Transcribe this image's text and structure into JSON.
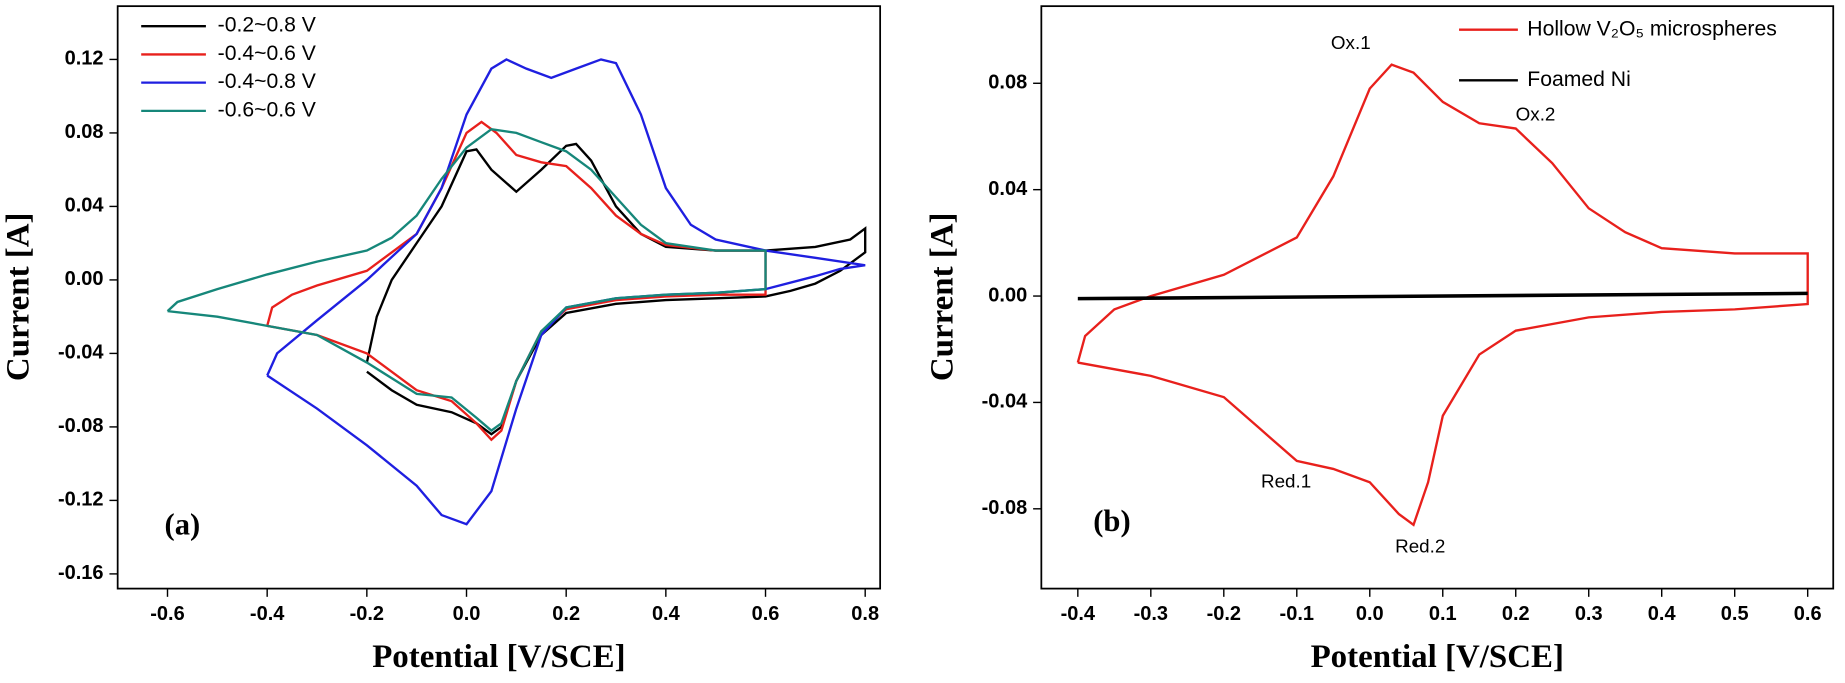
{
  "chart_data": [
    {
      "type": "line",
      "panel_label": "(a)",
      "x_label": "Potential [V/SCE]",
      "y_label": "Current [A]",
      "xlim": [
        -0.7,
        0.83
      ],
      "ylim": [
        -0.168,
        0.149
      ],
      "xticks": [
        -0.6,
        -0.4,
        -0.2,
        {
          "value": 0,
          "label": "0.0"
        },
        0.2,
        0.4,
        0.6,
        0.8
      ],
      "yticks": [
        0.12,
        0.08,
        0.04,
        {
          "value": 0,
          "label": "0.00"
        },
        -0.04,
        -0.08,
        -0.12,
        -0.16
      ],
      "legend": "upper left",
      "series": [
        {
          "name": "-0.2~0.8 V",
          "color": "#000000",
          "x": [
            -0.2,
            -0.18,
            -0.15,
            -0.1,
            -0.05,
            0.0,
            0.02,
            0.05,
            0.1,
            0.15,
            0.2,
            0.22,
            0.25,
            0.3,
            0.35,
            0.4,
            0.5,
            0.6,
            0.7,
            0.77,
            0.8,
            0.8,
            0.75,
            0.7,
            0.65,
            0.6,
            0.5,
            0.4,
            0.3,
            0.2,
            0.15,
            0.1,
            0.07,
            0.05,
            0.02,
            -0.03,
            -0.1,
            -0.15,
            -0.2
          ],
          "values": [
            -0.045,
            -0.02,
            0.0,
            0.02,
            0.04,
            0.07,
            0.071,
            0.06,
            0.048,
            0.06,
            0.073,
            0.074,
            0.065,
            0.04,
            0.025,
            0.018,
            0.016,
            0.016,
            0.018,
            0.022,
            0.028,
            0.015,
            0.005,
            -0.002,
            -0.006,
            -0.009,
            -0.01,
            -0.011,
            -0.013,
            -0.018,
            -0.03,
            -0.055,
            -0.08,
            -0.084,
            -0.078,
            -0.072,
            -0.068,
            -0.06,
            -0.05
          ]
        },
        {
          "name": "-0.4~0.6 V",
          "color": "#e8201c",
          "x": [
            -0.4,
            -0.39,
            -0.35,
            -0.3,
            -0.2,
            -0.1,
            -0.05,
            0.0,
            0.03,
            0.06,
            0.1,
            0.15,
            0.2,
            0.25,
            0.3,
            0.35,
            0.4,
            0.5,
            0.6,
            0.6,
            0.5,
            0.4,
            0.3,
            0.2,
            0.15,
            0.1,
            0.07,
            0.05,
            0.02,
            -0.03,
            -0.1,
            -0.2,
            -0.3,
            -0.4
          ],
          "values": [
            -0.025,
            -0.015,
            -0.008,
            -0.003,
            0.005,
            0.025,
            0.05,
            0.08,
            0.086,
            0.08,
            0.068,
            0.064,
            0.062,
            0.05,
            0.035,
            0.025,
            0.019,
            0.016,
            0.016,
            -0.008,
            -0.008,
            -0.009,
            -0.011,
            -0.016,
            -0.028,
            -0.055,
            -0.082,
            -0.087,
            -0.078,
            -0.066,
            -0.06,
            -0.04,
            -0.03,
            -0.025
          ]
        },
        {
          "name": "-0.4~0.8 V",
          "color": "#1f1fe0",
          "x": [
            -0.4,
            -0.38,
            -0.3,
            -0.2,
            -0.1,
            -0.05,
            0.0,
            0.05,
            0.08,
            0.12,
            0.17,
            0.22,
            0.27,
            0.3,
            0.35,
            0.4,
            0.45,
            0.5,
            0.6,
            0.7,
            0.8,
            0.75,
            0.7,
            0.6,
            0.5,
            0.4,
            0.3,
            0.2,
            0.15,
            0.1,
            0.05,
            0.0,
            -0.05,
            -0.1,
            -0.2,
            -0.3,
            -0.4
          ],
          "values": [
            -0.052,
            -0.04,
            -0.022,
            0.0,
            0.025,
            0.05,
            0.09,
            0.115,
            0.12,
            0.115,
            0.11,
            0.115,
            0.12,
            0.118,
            0.09,
            0.05,
            0.03,
            0.022,
            0.016,
            0.012,
            0.008,
            0.006,
            0.002,
            -0.005,
            -0.007,
            -0.008,
            -0.01,
            -0.015,
            -0.03,
            -0.07,
            -0.115,
            -0.133,
            -0.128,
            -0.112,
            -0.09,
            -0.07,
            -0.052
          ]
        },
        {
          "name": "-0.6~0.6 V",
          "color": "#16877a",
          "x": [
            -0.6,
            -0.58,
            -0.5,
            -0.4,
            -0.3,
            -0.2,
            -0.15,
            -0.1,
            -0.05,
            0.0,
            0.05,
            0.1,
            0.15,
            0.2,
            0.25,
            0.3,
            0.35,
            0.4,
            0.5,
            0.6,
            0.6,
            0.5,
            0.4,
            0.3,
            0.2,
            0.15,
            0.1,
            0.07,
            0.05,
            0.02,
            -0.03,
            -0.1,
            -0.2,
            -0.3,
            -0.4,
            -0.5,
            -0.6
          ],
          "values": [
            -0.017,
            -0.012,
            -0.005,
            0.003,
            0.01,
            0.016,
            0.023,
            0.035,
            0.055,
            0.072,
            0.082,
            0.08,
            0.075,
            0.07,
            0.06,
            0.045,
            0.03,
            0.02,
            0.016,
            0.016,
            -0.005,
            -0.007,
            -0.008,
            -0.01,
            -0.015,
            -0.028,
            -0.055,
            -0.078,
            -0.082,
            -0.075,
            -0.064,
            -0.062,
            -0.045,
            -0.03,
            -0.025,
            -0.02,
            -0.017
          ]
        }
      ]
    },
    {
      "type": "line",
      "panel_label": "(b)",
      "x_label": "Potential [V/SCE]",
      "y_label": "Current [A]",
      "xlim": [
        -0.45,
        0.635
      ],
      "ylim": [
        -0.11,
        0.109
      ],
      "xticks": [
        -0.4,
        -0.3,
        -0.2,
        -0.1,
        {
          "value": 0,
          "label": "0.0"
        },
        0.1,
        0.2,
        0.3,
        0.4,
        0.5,
        0.6
      ],
      "yticks": [
        0.08,
        0.04,
        {
          "value": 0,
          "label": "0.00"
        },
        -0.04,
        -0.08
      ],
      "legend": "upper right",
      "annotations": [
        "Ox.1",
        "Ox.2",
        "Red.1",
        "Red.2"
      ],
      "series": [
        {
          "name": "Hollow V₂O₅ microspheres",
          "color": "#e8201c",
          "x": [
            -0.4,
            -0.39,
            -0.35,
            -0.3,
            -0.2,
            -0.1,
            -0.05,
            0.0,
            0.03,
            0.06,
            0.1,
            0.15,
            0.2,
            0.25,
            0.3,
            0.35,
            0.4,
            0.5,
            0.6,
            0.6,
            0.5,
            0.4,
            0.3,
            0.2,
            0.15,
            0.1,
            0.08,
            0.06,
            0.04,
            0.0,
            -0.05,
            -0.1,
            -0.15,
            -0.2,
            -0.3,
            -0.4
          ],
          "values": [
            -0.025,
            -0.015,
            -0.005,
            0.0,
            0.008,
            0.022,
            0.045,
            0.078,
            0.087,
            0.084,
            0.073,
            0.065,
            0.063,
            0.05,
            0.033,
            0.024,
            0.018,
            0.016,
            0.016,
            -0.003,
            -0.005,
            -0.006,
            -0.008,
            -0.013,
            -0.022,
            -0.045,
            -0.07,
            -0.086,
            -0.082,
            -0.07,
            -0.065,
            -0.062,
            -0.05,
            -0.038,
            -0.03,
            -0.025
          ]
        },
        {
          "name": "Foamed Ni",
          "color": "#000000",
          "x": [
            -0.4,
            0.6
          ],
          "values": [
            -0.001,
            0.001
          ]
        }
      ]
    }
  ]
}
